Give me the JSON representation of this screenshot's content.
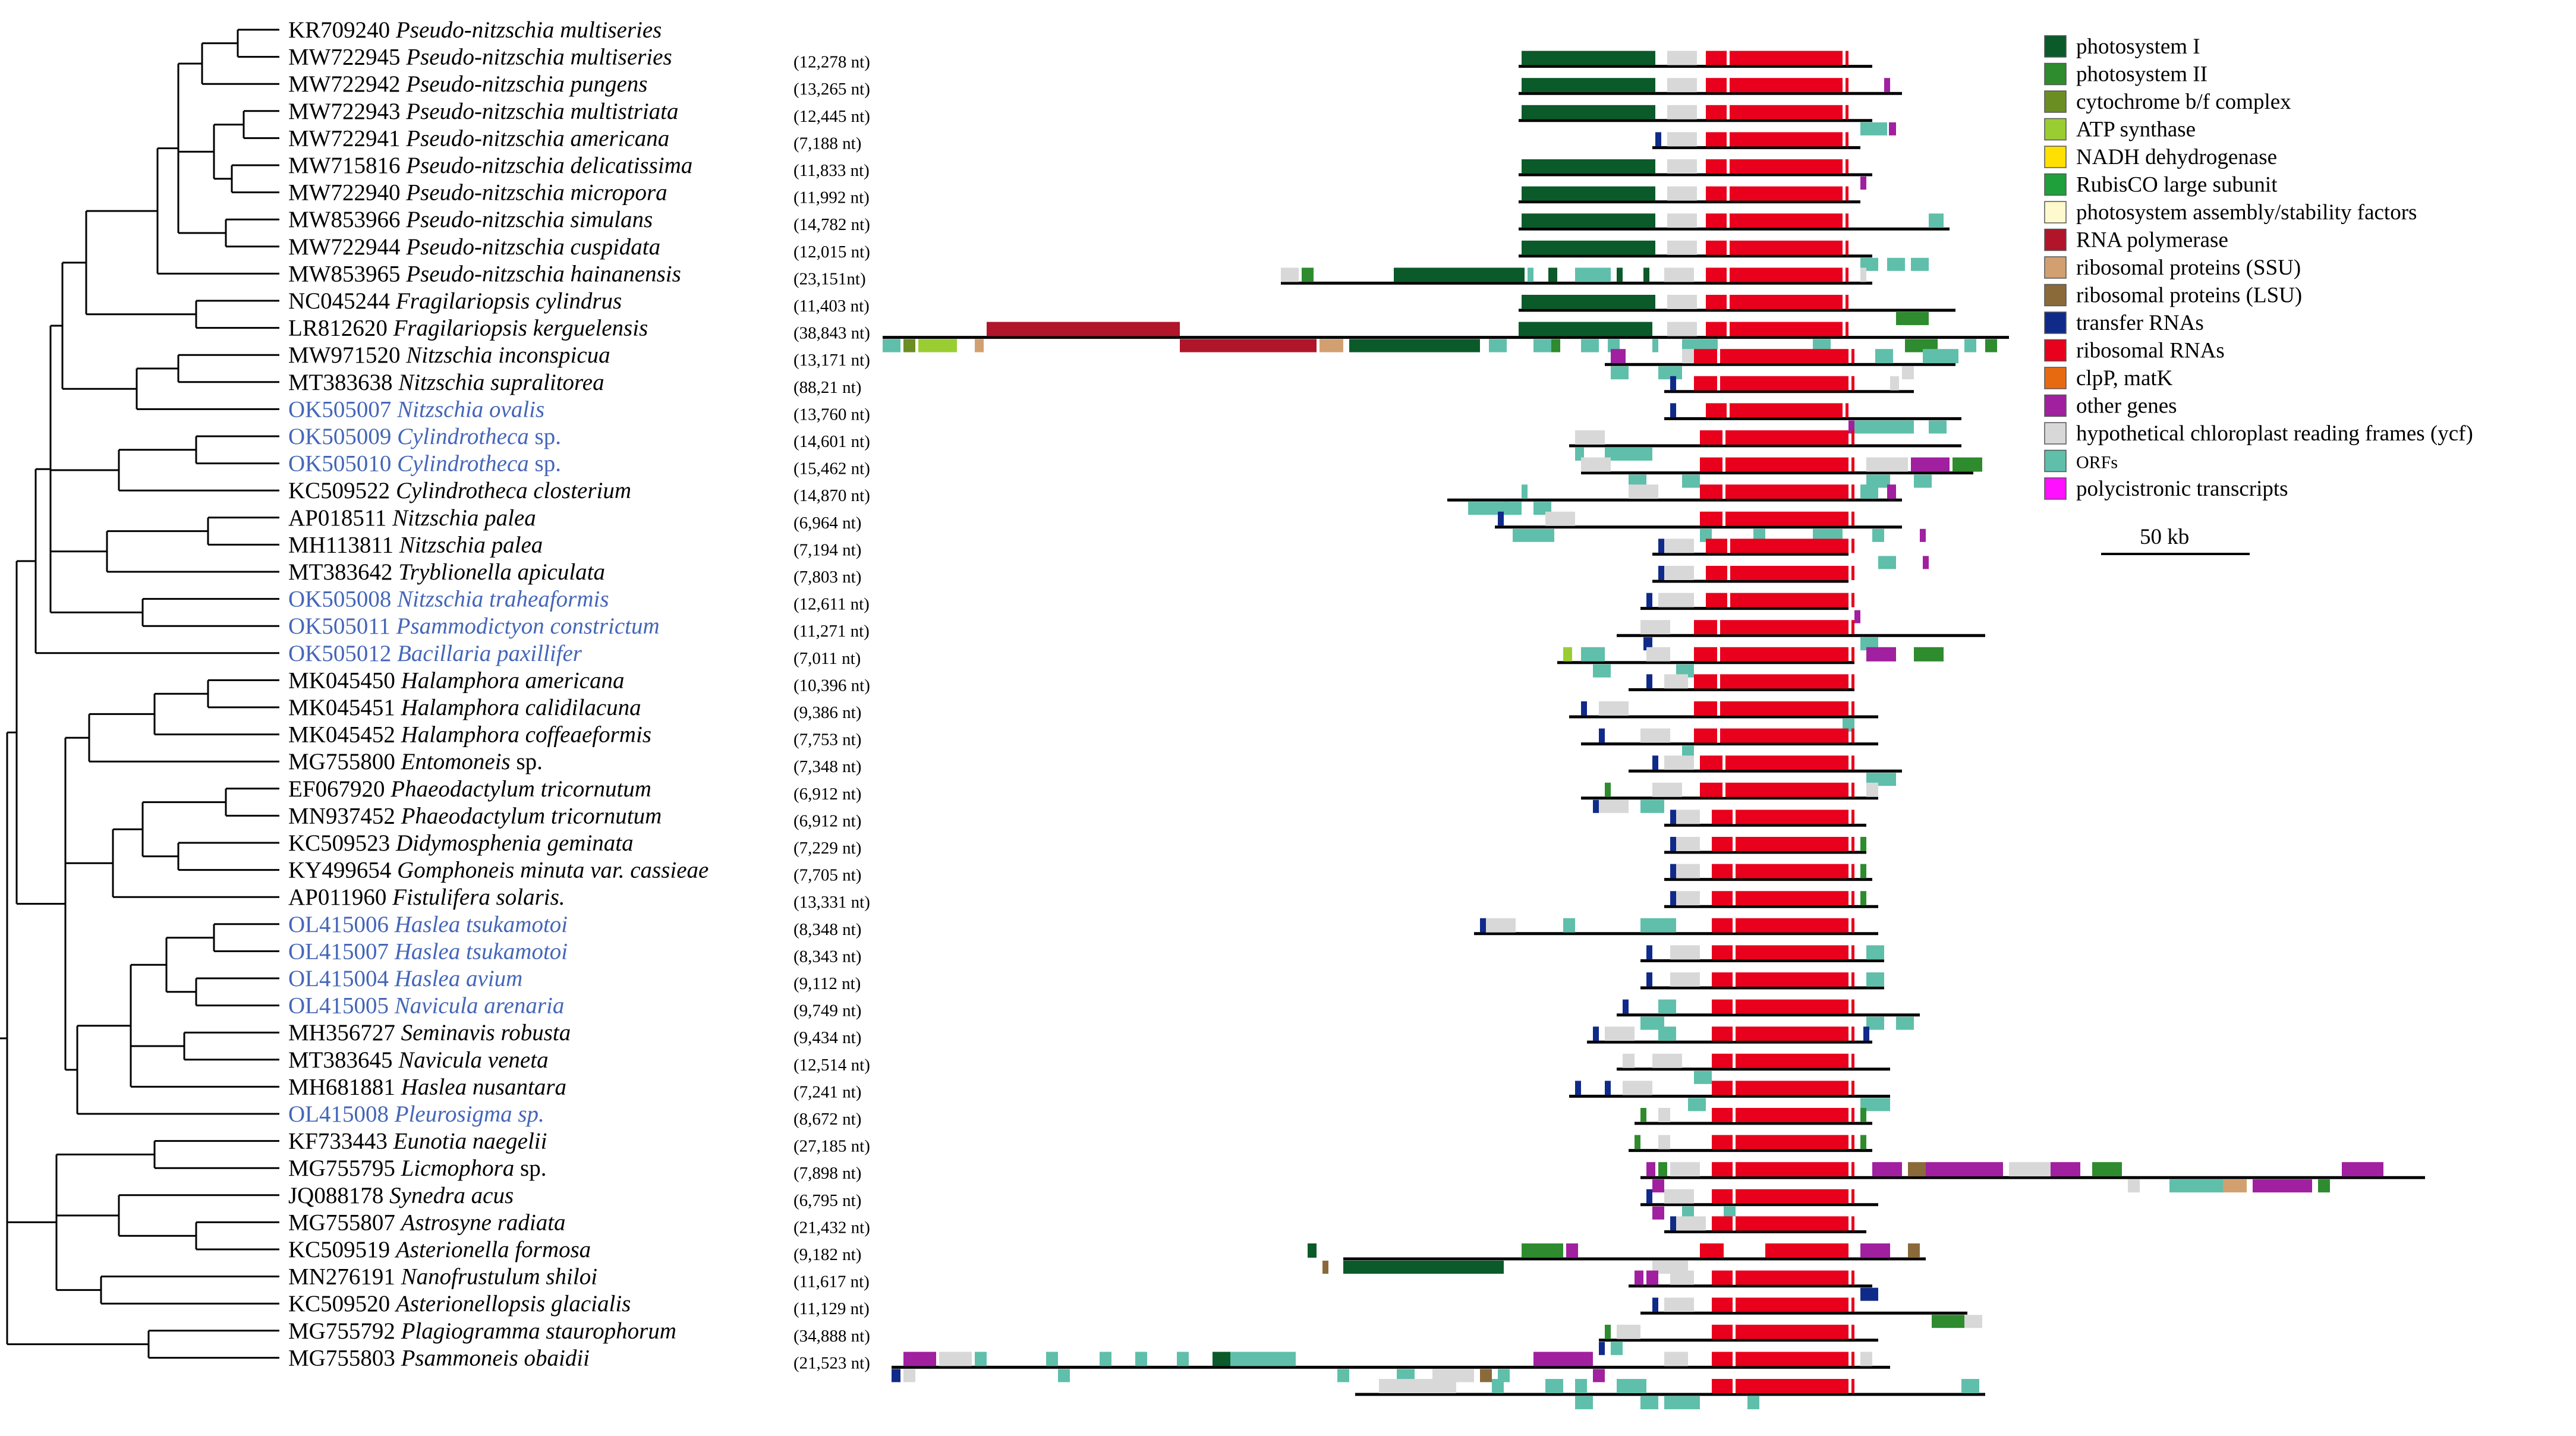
{
  "taxa": [
    {
      "acc": "KR709240",
      "sp": "Pseudo-nitzschia multiseries",
      "size": "",
      "hl": false
    },
    {
      "acc": "MW722945",
      "sp": "Pseudo-nitzschia multiseries",
      "size": "(12,278 nt)",
      "hl": false
    },
    {
      "acc": "MW722942",
      "sp": "Pseudo-nitzschia pungens",
      "size": "(13,265 nt)",
      "hl": false
    },
    {
      "acc": "MW722943",
      "sp": "Pseudo-nitzschia multistriata",
      "size": "(12,445 nt)",
      "hl": false
    },
    {
      "acc": "MW722941",
      "sp": "Pseudo-nitzschia americana",
      "size": "(7,188 nt)",
      "hl": false
    },
    {
      "acc": "MW715816",
      "sp": "Pseudo-nitzschia delicatissima",
      "size": "(11,833 nt)",
      "hl": false
    },
    {
      "acc": "MW722940",
      "sp": "Pseudo-nitzschia micropora",
      "size": "(11,992 nt)",
      "hl": false
    },
    {
      "acc": "MW853966",
      "sp": "Pseudo-nitzschia simulans",
      "size": "(14,782 nt)",
      "hl": false
    },
    {
      "acc": "MW722944",
      "sp": "Pseudo-nitzschia cuspidata",
      "size": "(12,015 nt)",
      "hl": false
    },
    {
      "acc": "MW853965",
      "sp": "Pseudo-nitzschia hainanensis",
      "size": "(23,151nt)",
      "hl": false
    },
    {
      "acc": "NC045244",
      "sp": "Fragilariopsis cylindrus",
      "size": "(11,403 nt)",
      "hl": false
    },
    {
      "acc": "LR812620",
      "sp": "Fragilariopsis kerguelensis",
      "size": "(38,843 nt)",
      "hl": false
    },
    {
      "acc": "MW971520",
      "sp": "Nitzschia inconspicua",
      "size": "(13,171 nt)",
      "hl": false
    },
    {
      "acc": "MT383638",
      "sp": "Nitzschia supralitorea",
      "size": "(88,21 nt)",
      "hl": false
    },
    {
      "acc": "OK505007",
      "sp": "Nitzschia ovalis",
      "size": "(13,760 nt)",
      "hl": true
    },
    {
      "acc": "OK505009",
      "sp": "Cylindrotheca",
      "suffix": "sp.",
      "size": "(14,601 nt)",
      "hl": true
    },
    {
      "acc": "OK505010",
      "sp": "Cylindrotheca",
      "suffix": "sp.",
      "size": "(15,462 nt)",
      "hl": true
    },
    {
      "acc": "KC509522",
      "sp": "Cylindrotheca closterium",
      "size": "(14,870 nt)",
      "hl": false
    },
    {
      "acc": "AP018511",
      "sp": "Nitzschia palea",
      "size": "(6,964 nt)",
      "hl": false
    },
    {
      "acc": "MH113811",
      "sp": "Nitzschia palea",
      "size": "(7,194 nt)",
      "hl": false
    },
    {
      "acc": "MT383642",
      "sp": "Tryblionella apiculata",
      "size": "(7,803 nt)",
      "hl": false
    },
    {
      "acc": "OK505008",
      "sp": "Nitzschia traheaformis",
      "size": "(12,611 nt)",
      "hl": true
    },
    {
      "acc": "OK505011",
      "sp": "Psammodictyon constrictum",
      "size": "(11,271 nt)",
      "hl": true
    },
    {
      "acc": "OK505012",
      "sp": "Bacillaria paxillifer",
      "size": "(7,011 nt)",
      "hl": true
    },
    {
      "acc": "MK045450",
      "sp": "Halamphora americana",
      "size": "(10,396 nt)",
      "hl": false
    },
    {
      "acc": "MK045451",
      "sp": "Halamphora calidilacuna",
      "size": "(9,386 nt)",
      "hl": false
    },
    {
      "acc": "MK045452",
      "sp": "Halamphora coffeaeformis",
      "size": "(7,753 nt)",
      "hl": false
    },
    {
      "acc": "MG755800",
      "sp": "Entomoneis",
      "suffix": "sp.",
      "size": "(7,348 nt)",
      "hl": false
    },
    {
      "acc": "EF067920",
      "sp": "Phaeodactylum tricornutum",
      "size": "(6,912 nt)",
      "hl": false
    },
    {
      "acc": "MN937452",
      "sp": "Phaeodactylum tricornutum",
      "size": "(6,912 nt)",
      "hl": false
    },
    {
      "acc": "KC509523",
      "sp": "Didymosphenia geminata",
      "size": "(7,229 nt)",
      "hl": false
    },
    {
      "acc": "KY499654",
      "sp": "Gomphoneis minuta var. cassieae",
      "size": "(7,705 nt)",
      "hl": false
    },
    {
      "acc": "AP011960",
      "sp": "Fistulifera solaris.",
      "size": "(13,331 nt)",
      "hl": false
    },
    {
      "acc": "OL415006",
      "sp": "Haslea tsukamotoi",
      "size": "(8,348 nt)",
      "hl": true
    },
    {
      "acc": "OL415007",
      "sp": "Haslea tsukamotoi",
      "size": "(8,343 nt)",
      "hl": true
    },
    {
      "acc": "OL415004",
      "sp": "Haslea avium",
      "size": "(9,112 nt)",
      "hl": true
    },
    {
      "acc": "OL415005",
      "sp": "Navicula arenaria",
      "size": "(9,749 nt)",
      "hl": true
    },
    {
      "acc": "MH356727",
      "sp": "Seminavis robusta",
      "size": "(9,434 nt)",
      "hl": false
    },
    {
      "acc": "MT383645",
      "sp": "Navicula veneta",
      "size": "(12,514 nt)",
      "hl": false
    },
    {
      "acc": "MH681881",
      "sp": "Haslea nusantara",
      "size": "(7,241 nt)",
      "hl": false
    },
    {
      "acc": "OL415008",
      "sp": "Pleurosigma sp.",
      "size": "(8,672 nt)",
      "hl": true
    },
    {
      "acc": "KF733443",
      "sp": "Eunotia naegelii",
      "size": "(27,185 nt)",
      "hl": false
    },
    {
      "acc": "MG755795",
      "sp": "Licmophora",
      "suffix": "sp.",
      "size": "(7,898 nt)",
      "hl": false
    },
    {
      "acc": "JQ088178",
      "sp": "Synedra acus",
      "size": "(6,795 nt)",
      "hl": false
    },
    {
      "acc": "MG755807",
      "sp": "Astrosyne radiata",
      "size": "(21,432 nt)",
      "hl": false
    },
    {
      "acc": "KC509519",
      "sp": "Asterionella formosa",
      "size": "(9,182 nt)",
      "hl": false
    },
    {
      "acc": "MN276191",
      "sp": "Nanofrustulum shiloi",
      "size": "(11,617 nt)",
      "hl": false
    },
    {
      "acc": "KC509520",
      "sp": "Asterionellopsis glacialis",
      "size": "(11,129 nt)",
      "hl": false
    },
    {
      "acc": "MG755792",
      "sp": "Plagiogramma staurophorum",
      "size": "(34,888 nt)",
      "hl": false
    },
    {
      "acc": "MG755803",
      "sp": "Psammoneis obaidii",
      "size": "(21,523 nt)",
      "hl": false
    }
  ],
  "legend": [
    {
      "label": "photosystem I",
      "color": "#0b5a2a"
    },
    {
      "label": "photosystem II",
      "color": "#2e8b2e"
    },
    {
      "label": "cytochrome b/f complex",
      "color": "#6b8e23"
    },
    {
      "label": "ATP synthase",
      "color": "#9acd32"
    },
    {
      "label": "NADH dehydrogenase",
      "color": "#ffe000"
    },
    {
      "label": "RubisCO large subunit",
      "color": "#1fa03a"
    },
    {
      "label": "photosystem assembly/stability factors",
      "color": "#fffacd"
    },
    {
      "label": "RNA polymerase",
      "color": "#b0152a"
    },
    {
      "label": "ribosomal proteins (SSU)",
      "color": "#d2a070"
    },
    {
      "label": "ribosomal proteins (LSU)",
      "color": "#8b6a3a"
    },
    {
      "label": "transfer RNAs",
      "color": "#102a8a"
    },
    {
      "label": "ribosomal RNAs",
      "color": "#e8001c"
    },
    {
      "label": "clpP, matK",
      "color": "#e86a10"
    },
    {
      "label": "other genes",
      "color": "#a020a0"
    },
    {
      "label": "hypothetical chloroplast reading frames (ycf)",
      "color": "#d8d8d8"
    },
    {
      "label": "ORFs",
      "color": "#5fbfaa",
      "small": true
    },
    {
      "label": "polycistronic transcripts",
      "color": "#ff10ff"
    }
  ],
  "scale_label": "50 kb"
}
